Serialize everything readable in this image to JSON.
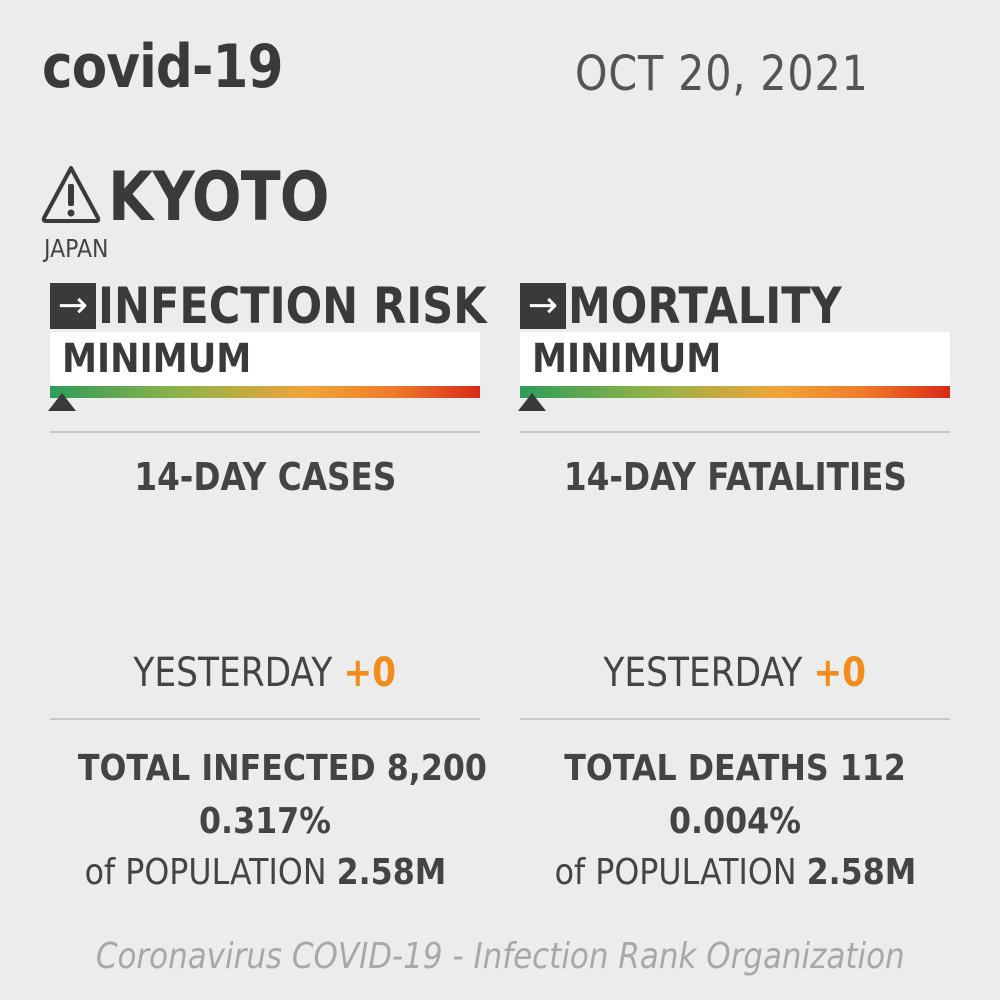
{
  "header": {
    "brand": "covid-19",
    "date": "OCT 20, 2021"
  },
  "location": {
    "icon": "warning-icon",
    "city": "KYOTO",
    "country": "JAPAN"
  },
  "panels": {
    "infection": {
      "arrow": "→",
      "title": "INFECTION RISK",
      "level": "MINIMUM",
      "level_position": 0.0,
      "stat_label": "14-DAY CASES",
      "yesterday_label": "YESTERDAY",
      "yesterday_delta": "+0",
      "total_label": "TOTAL INFECTED",
      "total_value": "8,200",
      "percent": "0.317%",
      "population_label": "of POPULATION",
      "population_value": "2.58M"
    },
    "mortality": {
      "arrow": "→",
      "title": "MORTALITY",
      "level": "MINIMUM",
      "level_position": 0.0,
      "stat_label": "14-DAY FATALITIES",
      "yesterday_label": "YESTERDAY",
      "yesterday_delta": "+0",
      "total_label": "TOTAL DEATHS",
      "total_value": "112",
      "percent": "0.004%",
      "population_label": "of POPULATION",
      "population_value": "2.58M"
    }
  },
  "colors": {
    "accent_orange": "#f28c1b",
    "risk_low": "#2e9c5a",
    "risk_high": "#d92a1a",
    "background": "#ececec"
  },
  "footer": {
    "text": "Coronavirus COVID-19 - Infection Rank Organization"
  }
}
